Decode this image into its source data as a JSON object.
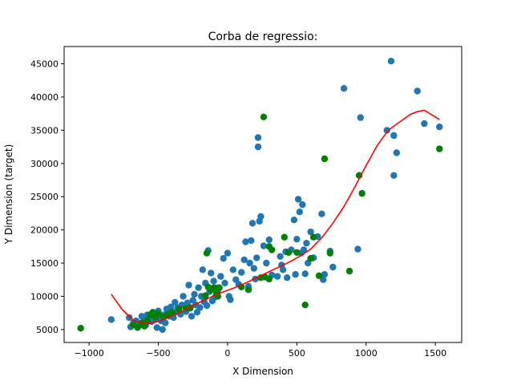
{
  "colors": {
    "train": "#1f77b4",
    "test": "#008000",
    "regression": "#ff0000",
    "axes": "#000000",
    "background": "#ffffff"
  },
  "chart_data": {
    "type": "scatter",
    "title": "Corba de regressio:",
    "xlabel": "X Dimension",
    "ylabel": "Y Dimension (target)",
    "xlim": [
      -1180,
      1690
    ],
    "ylim": [
      3050,
      47600
    ],
    "xticks": [
      -1000,
      -500,
      0,
      500,
      1000,
      1500
    ],
    "yticks": [
      5000,
      10000,
      15000,
      20000,
      25000,
      30000,
      35000,
      40000,
      45000
    ],
    "xtick_labels": [
      "−1000",
      "−500",
      "0",
      "500",
      "1000",
      "1500"
    ],
    "ytick_labels": [
      "5000",
      "10000",
      "15000",
      "20000",
      "25000",
      "30000",
      "35000",
      "40000",
      "45000"
    ],
    "grid": false,
    "series": [
      {
        "name": "train",
        "kind": "scatter",
        "color": "#1f77b4",
        "points": [
          [
            -840,
            6500
          ],
          [
            -710,
            6800
          ],
          [
            -700,
            5400
          ],
          [
            -680,
            6000
          ],
          [
            -660,
            6300
          ],
          [
            -640,
            5600
          ],
          [
            -620,
            7000
          ],
          [
            -600,
            6400
          ],
          [
            -590,
            5700
          ],
          [
            -580,
            7200
          ],
          [
            -560,
            6900
          ],
          [
            -550,
            6200
          ],
          [
            -540,
            7500
          ],
          [
            -520,
            6600
          ],
          [
            -510,
            5300
          ],
          [
            -500,
            7800
          ],
          [
            -490,
            7000
          ],
          [
            -480,
            6300
          ],
          [
            -470,
            5000
          ],
          [
            -460,
            7200
          ],
          [
            -450,
            6000
          ],
          [
            -440,
            8100
          ],
          [
            -420,
            7000
          ],
          [
            -410,
            8400
          ],
          [
            -400,
            7500
          ],
          [
            -390,
            6800
          ],
          [
            -380,
            9100
          ],
          [
            -370,
            7700
          ],
          [
            -360,
            8300
          ],
          [
            -340,
            7300
          ],
          [
            -330,
            8700
          ],
          [
            -320,
            10000
          ],
          [
            -300,
            7700
          ],
          [
            -290,
            9000
          ],
          [
            -280,
            11700
          ],
          [
            -270,
            8200
          ],
          [
            -260,
            7000
          ],
          [
            -250,
            9400
          ],
          [
            -240,
            10300
          ],
          [
            -230,
            8700
          ],
          [
            -220,
            7600
          ],
          [
            -210,
            11300
          ],
          [
            -200,
            8300
          ],
          [
            -190,
            10000
          ],
          [
            -180,
            14000
          ],
          [
            -170,
            9200
          ],
          [
            -160,
            12000
          ],
          [
            -150,
            8600
          ],
          [
            -140,
            16900
          ],
          [
            -130,
            10700
          ],
          [
            -120,
            13500
          ],
          [
            -110,
            9300
          ],
          [
            -100,
            12300
          ],
          [
            -90,
            9900
          ],
          [
            -80,
            11300
          ],
          [
            -70,
            10900
          ],
          [
            -50,
            13000
          ],
          [
            -30,
            15700
          ],
          [
            -20,
            12000
          ],
          [
            0,
            16500
          ],
          [
            10,
            10000
          ],
          [
            20,
            9500
          ],
          [
            40,
            14000
          ],
          [
            60,
            12500
          ],
          [
            80,
            11800
          ],
          [
            100,
            13600
          ],
          [
            120,
            15500
          ],
          [
            130,
            18200
          ],
          [
            150,
            11500
          ],
          [
            160,
            15000
          ],
          [
            170,
            18400
          ],
          [
            180,
            21000
          ],
          [
            190,
            14200
          ],
          [
            200,
            12600
          ],
          [
            210,
            15800
          ],
          [
            220,
            33900
          ],
          [
            220,
            32500
          ],
          [
            230,
            21300
          ],
          [
            240,
            22000
          ],
          [
            260,
            17600
          ],
          [
            280,
            15000
          ],
          [
            300,
            18500
          ],
          [
            320,
            13200
          ],
          [
            360,
            13000
          ],
          [
            380,
            16000
          ],
          [
            390,
            14700
          ],
          [
            400,
            14000
          ],
          [
            420,
            16700
          ],
          [
            430,
            12800
          ],
          [
            460,
            17000
          ],
          [
            480,
            21500
          ],
          [
            490,
            13300
          ],
          [
            500,
            18600
          ],
          [
            510,
            24600
          ],
          [
            520,
            22700
          ],
          [
            530,
            16500
          ],
          [
            540,
            23800
          ],
          [
            550,
            17000
          ],
          [
            560,
            13400
          ],
          [
            570,
            18000
          ],
          [
            580,
            15000
          ],
          [
            600,
            19700
          ],
          [
            620,
            15800
          ],
          [
            650,
            19000
          ],
          [
            680,
            22400
          ],
          [
            690,
            12500
          ],
          [
            700,
            13300
          ],
          [
            740,
            16800
          ],
          [
            760,
            14400
          ],
          [
            840,
            41300
          ],
          [
            940,
            17100
          ],
          [
            960,
            36900
          ],
          [
            1150,
            35000
          ],
          [
            1180,
            45400
          ],
          [
            1200,
            34200
          ],
          [
            1200,
            28200
          ],
          [
            1220,
            31600
          ],
          [
            1370,
            40900
          ],
          [
            1420,
            36000
          ],
          [
            1530,
            35500
          ]
        ]
      },
      {
        "name": "test",
        "kind": "scatter",
        "color": "#008000",
        "points": [
          [
            -1060,
            5200
          ],
          [
            -680,
            5700
          ],
          [
            -650,
            5300
          ],
          [
            -620,
            6000
          ],
          [
            -600,
            5500
          ],
          [
            -580,
            6300
          ],
          [
            -560,
            7200
          ],
          [
            -540,
            7600
          ],
          [
            -520,
            6900
          ],
          [
            -500,
            7400
          ],
          [
            -460,
            6900
          ],
          [
            -430,
            7300
          ],
          [
            -400,
            7600
          ],
          [
            -350,
            8100
          ],
          [
            -300,
            8200
          ],
          [
            -270,
            8300
          ],
          [
            -160,
            10100
          ],
          [
            -150,
            16500
          ],
          [
            -140,
            11400
          ],
          [
            -120,
            11000
          ],
          [
            -100,
            11300
          ],
          [
            -80,
            10500
          ],
          [
            -70,
            10000
          ],
          [
            -60,
            11300
          ],
          [
            100,
            11400
          ],
          [
            150,
            11000
          ],
          [
            240,
            12800
          ],
          [
            260,
            37000
          ],
          [
            270,
            12900
          ],
          [
            300,
            12600
          ],
          [
            300,
            17500
          ],
          [
            320,
            17000
          ],
          [
            410,
            18900
          ],
          [
            440,
            16600
          ],
          [
            500,
            16600
          ],
          [
            560,
            8700
          ],
          [
            600,
            15700
          ],
          [
            620,
            18900
          ],
          [
            660,
            13100
          ],
          [
            700,
            30700
          ],
          [
            740,
            16500
          ],
          [
            880,
            13800
          ],
          [
            950,
            28200
          ],
          [
            970,
            25500
          ],
          [
            1530,
            32200
          ]
        ]
      },
      {
        "name": "regression",
        "kind": "line",
        "color": "#ff0000",
        "points": [
          [
            -840,
            10300
          ],
          [
            -760,
            8000
          ],
          [
            -680,
            6400
          ],
          [
            -600,
            5900
          ],
          [
            -520,
            6100
          ],
          [
            -440,
            6700
          ],
          [
            -360,
            7400
          ],
          [
            -280,
            8300
          ],
          [
            -200,
            9100
          ],
          [
            -120,
            9900
          ],
          [
            -40,
            10600
          ],
          [
            40,
            11200
          ],
          [
            120,
            11900
          ],
          [
            200,
            12700
          ],
          [
            280,
            13500
          ],
          [
            360,
            14300
          ],
          [
            440,
            15100
          ],
          [
            520,
            16000
          ],
          [
            600,
            17100
          ],
          [
            680,
            18800
          ],
          [
            760,
            21000
          ],
          [
            840,
            23500
          ],
          [
            920,
            26500
          ],
          [
            1000,
            29700
          ],
          [
            1080,
            32700
          ],
          [
            1160,
            35000
          ],
          [
            1240,
            36200
          ],
          [
            1320,
            37400
          ],
          [
            1370,
            37800
          ],
          [
            1420,
            38000
          ],
          [
            1460,
            37500
          ],
          [
            1530,
            36600
          ]
        ]
      }
    ]
  }
}
